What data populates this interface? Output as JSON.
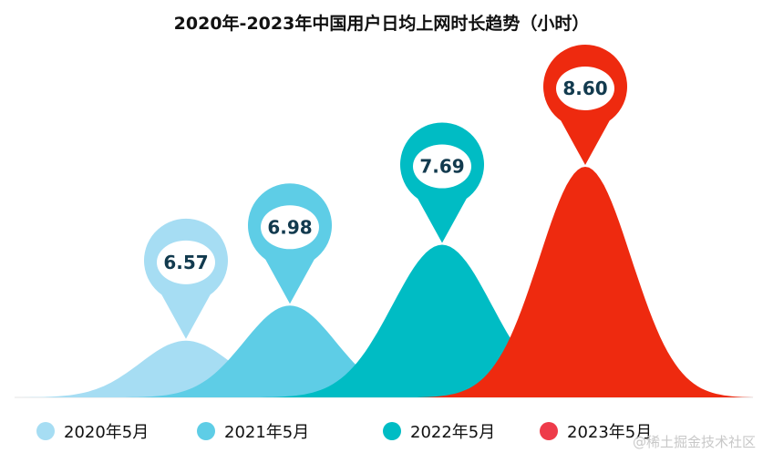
{
  "chart_data": {
    "type": "area",
    "title": "2020年-2023年中国用户日均上网时长趋势（小时）",
    "unit": "小时",
    "categories": [
      "2020年5月",
      "2021年5月",
      "2022年5月",
      "2023年5月"
    ],
    "values": [
      6.57,
      6.98,
      7.69,
      8.6
    ],
    "value_labels": [
      "6.57",
      "6.98",
      "7.69",
      "8.60"
    ],
    "colors": [
      "#a6ddf3",
      "#5ecde6",
      "#00bcc4",
      "#ee2a0f"
    ],
    "legend_colors": [
      "#a6ddf3",
      "#5ecde6",
      "#00bcc4",
      "#ee3b4a"
    ],
    "ylim": [
      5.6,
      8.6
    ],
    "legend_position": "bottom"
  },
  "watermark": "@稀土掘金技术社区"
}
